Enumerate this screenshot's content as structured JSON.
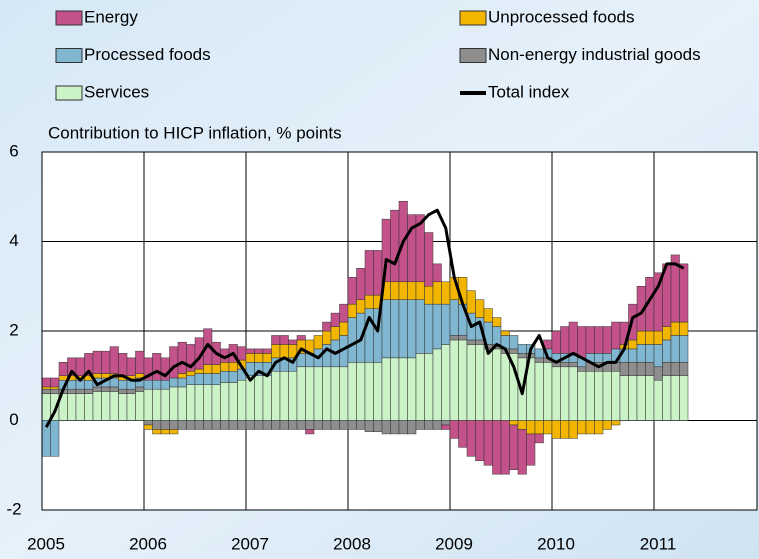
{
  "chart_data": {
    "type": "bar",
    "stacked": true,
    "title": "Contribution to HICP inflation, % points",
    "categories": [
      "2005",
      null,
      null,
      null,
      null,
      null,
      null,
      null,
      null,
      null,
      null,
      null,
      "2006",
      null,
      null,
      null,
      null,
      null,
      null,
      null,
      null,
      null,
      null,
      null,
      "2007",
      null,
      null,
      null,
      null,
      null,
      null,
      null,
      null,
      null,
      null,
      null,
      "2008",
      null,
      null,
      null,
      null,
      null,
      null,
      null,
      null,
      null,
      null,
      null,
      "2009",
      null,
      null,
      null,
      null,
      null,
      null,
      null,
      null,
      null,
      null,
      null,
      "2010",
      null,
      null,
      null,
      null,
      null,
      null,
      null,
      null,
      null,
      null,
      null,
      "2011",
      null,
      null,
      null
    ],
    "ylim": [
      -2,
      6
    ],
    "yticks": [
      -2,
      0,
      2,
      4,
      6
    ],
    "grid": true,
    "series": [
      {
        "name": "Energy",
        "color": "#c4528a",
        "values": [
          0.2,
          0.2,
          0.3,
          0.4,
          0.4,
          0.5,
          0.5,
          0.5,
          0.6,
          0.5,
          0.4,
          0.5,
          0.5,
          0.6,
          0.5,
          0.7,
          0.7,
          0.6,
          0.7,
          0.8,
          0.5,
          0.3,
          0.4,
          0.3,
          0.1,
          0.1,
          0.1,
          0.2,
          0.2,
          0.1,
          0.1,
          -0.1,
          0.0,
          0.2,
          0.3,
          0.4,
          0.6,
          0.7,
          1.0,
          1.0,
          1.4,
          1.6,
          1.8,
          1.5,
          1.5,
          1.2,
          0.4,
          -0.1,
          -0.4,
          -0.6,
          -0.8,
          -0.9,
          -1.0,
          -1.2,
          -1.2,
          -1.0,
          -1.0,
          -0.7,
          -0.2,
          0.2,
          0.5,
          0.6,
          0.7,
          0.7,
          0.6,
          0.6,
          0.6,
          0.6,
          0.5,
          0.8,
          1.0,
          1.2,
          1.3,
          1.4,
          1.5,
          1.3
        ]
      },
      {
        "name": "Unprocessed foods",
        "color": "#f2b600",
        "values": [
          0.05,
          0.05,
          0.1,
          0.1,
          0.1,
          0.1,
          0.1,
          0.1,
          0.1,
          0.1,
          0.1,
          0.1,
          -0.1,
          -0.1,
          -0.1,
          -0.1,
          0.1,
          0.1,
          0.1,
          0.2,
          0.2,
          0.2,
          0.2,
          0.2,
          0.2,
          0.2,
          0.2,
          0.3,
          0.3,
          0.3,
          0.3,
          0.3,
          0.3,
          0.3,
          0.3,
          0.3,
          0.3,
          0.3,
          0.3,
          0.3,
          0.4,
          0.4,
          0.4,
          0.4,
          0.4,
          0.4,
          0.5,
          0.5,
          0.5,
          0.6,
          0.5,
          0.4,
          0.3,
          0.2,
          0.1,
          -0.1,
          -0.2,
          -0.3,
          -0.3,
          -0.3,
          -0.4,
          -0.4,
          -0.4,
          -0.3,
          -0.3,
          -0.3,
          -0.2,
          -0.1,
          0.1,
          0.2,
          0.3,
          0.3,
          0.3,
          0.3,
          0.3,
          0.3
        ]
      },
      {
        "name": "Processed foods",
        "color": "#80b6d0",
        "values": [
          -0.8,
          -0.8,
          0.2,
          0.2,
          0.2,
          0.2,
          0.2,
          0.2,
          0.2,
          0.2,
          0.2,
          0.2,
          0.2,
          0.2,
          0.2,
          0.2,
          0.2,
          0.2,
          0.25,
          0.25,
          0.25,
          0.25,
          0.25,
          0.25,
          0.3,
          0.3,
          0.3,
          0.3,
          0.3,
          0.3,
          0.3,
          0.3,
          0.4,
          0.5,
          0.6,
          0.7,
          1.0,
          1.1,
          1.2,
          1.2,
          1.3,
          1.3,
          1.3,
          1.3,
          1.2,
          1.1,
          1.0,
          0.9,
          0.8,
          0.7,
          0.6,
          0.5,
          0.5,
          0.4,
          0.3,
          0.3,
          0.2,
          0.2,
          0.2,
          0.2,
          0.2,
          0.2,
          0.2,
          0.2,
          0.2,
          0.2,
          0.2,
          0.3,
          0.3,
          0.3,
          0.4,
          0.4,
          0.5,
          0.5,
          0.6,
          0.6
        ]
      },
      {
        "name": "Non-energy industrial goods",
        "color": "#8e8e8e",
        "values": [
          0.1,
          0.1,
          0.1,
          0.1,
          0.1,
          0.1,
          0.1,
          0.1,
          0.1,
          0.1,
          0.1,
          0.1,
          -0.1,
          -0.2,
          -0.2,
          -0.2,
          -0.2,
          -0.2,
          -0.2,
          -0.2,
          -0.2,
          -0.2,
          -0.2,
          -0.2,
          -0.2,
          -0.2,
          -0.2,
          -0.2,
          -0.2,
          -0.2,
          -0.2,
          -0.2,
          -0.2,
          -0.2,
          -0.2,
          -0.2,
          -0.2,
          -0.2,
          -0.25,
          -0.25,
          -0.3,
          -0.3,
          -0.3,
          -0.3,
          -0.2,
          -0.2,
          -0.2,
          -0.1,
          0.1,
          0.1,
          0.1,
          0.1,
          0.1,
          0.1,
          0.1,
          0.1,
          0.1,
          0.1,
          0.1,
          0.1,
          0.1,
          0.1,
          0.1,
          0.1,
          0.2,
          0.2,
          0.2,
          0.2,
          0.3,
          0.3,
          0.3,
          0.3,
          0.3,
          0.3,
          0.3,
          0.3
        ]
      },
      {
        "name": "Services",
        "color": "#ccf2c8",
        "values": [
          0.6,
          0.6,
          0.6,
          0.6,
          0.6,
          0.6,
          0.65,
          0.65,
          0.65,
          0.6,
          0.6,
          0.65,
          0.7,
          0.7,
          0.7,
          0.75,
          0.75,
          0.8,
          0.8,
          0.8,
          0.8,
          0.85,
          0.85,
          0.9,
          1.0,
          1.0,
          1.0,
          1.1,
          1.1,
          1.1,
          1.2,
          1.2,
          1.2,
          1.2,
          1.2,
          1.2,
          1.3,
          1.3,
          1.3,
          1.3,
          1.4,
          1.4,
          1.4,
          1.4,
          1.5,
          1.5,
          1.6,
          1.7,
          1.8,
          1.8,
          1.7,
          1.7,
          1.6,
          1.6,
          1.5,
          1.5,
          1.4,
          1.4,
          1.3,
          1.3,
          1.2,
          1.2,
          1.2,
          1.1,
          1.1,
          1.1,
          1.1,
          1.1,
          1.0,
          1.0,
          1.0,
          1.0,
          0.9,
          1.0,
          1.0,
          1.0
        ]
      },
      {
        "name": "Total index",
        "color": "#000000",
        "type": "line",
        "values": [
          -0.15,
          0.2,
          0.7,
          1.1,
          0.9,
          1.1,
          0.8,
          0.9,
          1.0,
          1.0,
          0.9,
          0.9,
          1.0,
          1.1,
          1.0,
          1.2,
          1.3,
          1.2,
          1.4,
          1.7,
          1.5,
          1.4,
          1.5,
          1.2,
          0.9,
          1.1,
          1.0,
          1.3,
          1.4,
          1.3,
          1.6,
          1.5,
          1.4,
          1.6,
          1.5,
          1.6,
          1.7,
          1.8,
          2.3,
          2.0,
          3.6,
          3.5,
          4.0,
          4.3,
          4.4,
          4.6,
          4.7,
          4.3,
          3.2,
          2.6,
          2.1,
          2.2,
          1.5,
          1.7,
          1.6,
          1.2,
          0.6,
          1.6,
          1.9,
          1.4,
          1.3,
          1.4,
          1.5,
          1.4,
          1.3,
          1.2,
          1.3,
          1.3,
          1.6,
          2.3,
          2.4,
          2.7,
          3.0,
          3.5,
          3.5,
          3.4
        ]
      }
    ]
  }
}
